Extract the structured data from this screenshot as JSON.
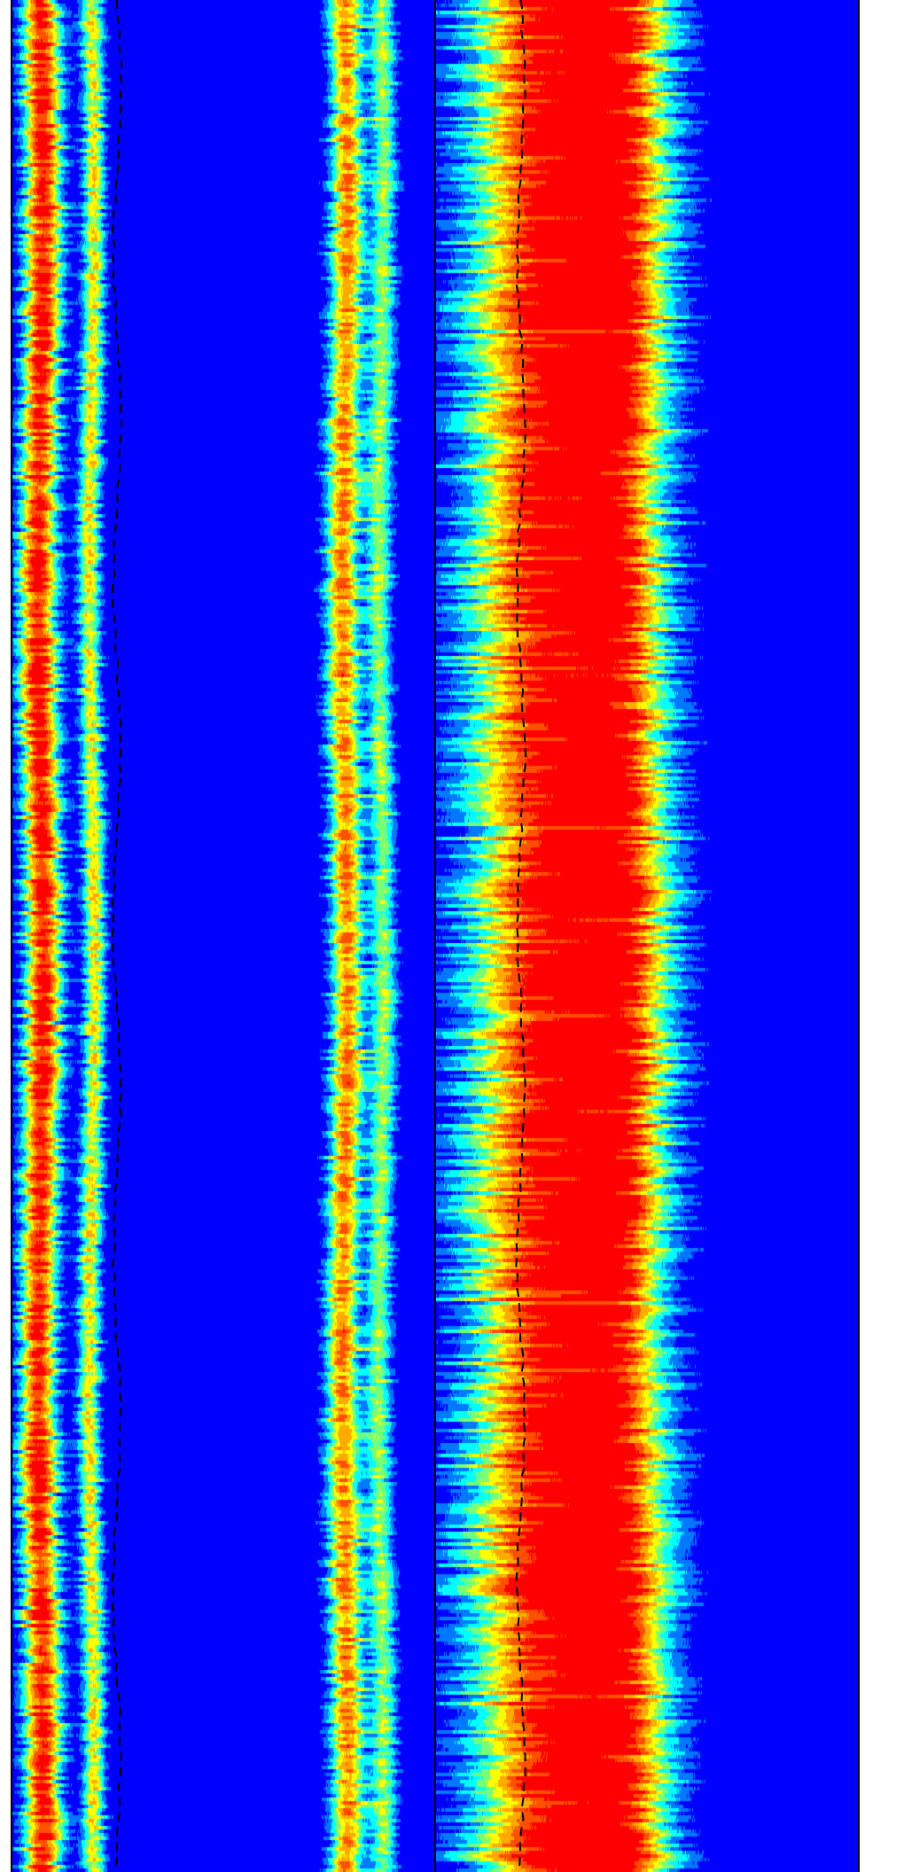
{
  "chart_data": [
    {
      "type": "heatmap",
      "title": "",
      "xlabel": "",
      "ylabel": "",
      "colormap": [
        "#0000ff",
        "#00ffff",
        "#ffff00",
        "#ff0000"
      ],
      "background_color": "#0000ff",
      "bands": [
        {
          "center": 0.07,
          "width": 0.05,
          "peak": 1.0,
          "bright_bias": 0.9
        },
        {
          "center": 0.19,
          "width": 0.03,
          "peak": 0.62,
          "bright_bias": 0.4
        },
        {
          "center": 0.785,
          "width": 0.045,
          "peak": 0.8,
          "bright_bias": 0.55
        },
        {
          "center": 0.87,
          "width": 0.035,
          "peak": 0.5,
          "bright_bias": 0.3
        }
      ],
      "dashed_trace": {
        "color": "#000000",
        "mean_x": 0.25
      }
    },
    {
      "type": "heatmap",
      "title": "",
      "xlabel": "",
      "ylabel": "",
      "colormap": [
        "#0000ff",
        "#00ffff",
        "#ffff00",
        "#ff0000"
      ],
      "background_color": "#0000ff",
      "bands": [
        {
          "center": 0.26,
          "width": 0.21,
          "peak": 1.0,
          "bright_bias": 0.95
        },
        {
          "center": 0.43,
          "width": 0.14,
          "peak": 0.8,
          "bright_bias": 0.6
        }
      ],
      "dashed_trace": {
        "color": "#000000",
        "mean_x": 0.2
      }
    }
  ]
}
